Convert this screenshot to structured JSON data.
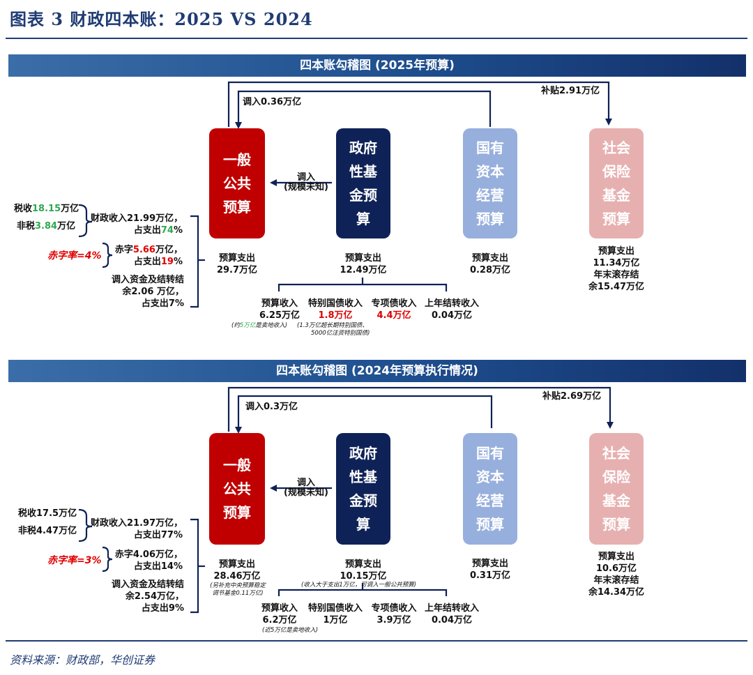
{
  "figure_title": "图表 3   财政四本账：2025 VS 2024",
  "source": "资料来源：财政部，华创证券",
  "colors": {
    "general": "#c00000",
    "fund": "#0f2257",
    "soe": "#97afdc",
    "social": "#e7b0b0"
  },
  "d2025": {
    "banner": "四本账勾稽图 (2025年预算)",
    "transfer_top": "调入0.36万亿",
    "subsidy": "补贴2.91万亿",
    "transfer_mid_1": "调入",
    "transfer_mid_2": "(规模未知)",
    "boxes": {
      "general": "一般\n公共\n预算",
      "fund": "政府\n性基\n金预\n算",
      "soe": "国有\n资本\n经营\n预算",
      "social": "社会\n保险\n基金\n预算"
    },
    "left": {
      "tax_pre": "税收",
      "tax_val": "18.15",
      "tax_post": "万亿",
      "nontax_pre": "非税",
      "nontax_val": "3.84",
      "nontax_post": "万亿",
      "rev_1": "财政收入21.99万亿，",
      "rev_2_pre": "占支出",
      "rev_2_val": "74",
      "rev_2_post": "%",
      "deficit_rate": "赤字率=4%",
      "def_1_pre": "赤字",
      "def_1_val": "5.66",
      "def_1_post": "万亿，",
      "def_2_pre": "占支出",
      "def_2_val": "19",
      "def_2_post": "%",
      "carry_1": "调入资金及结转结",
      "carry_2": "余2.06 万亿，",
      "carry_3": "占支出7%"
    },
    "general_exp_1": "预算支出",
    "general_exp_2": "29.7万亿",
    "fund_exp_1": "预算支出",
    "fund_exp_2": "12.49万亿",
    "soe_exp_1": "预算支出",
    "soe_exp_2": "0.28万亿",
    "social_1": "预算支出",
    "social_2": "11.34万亿",
    "social_3": "年末滚存结",
    "social_4": "余15.47万亿",
    "fund_items": {
      "budget_rev_1": "预算收入",
      "budget_rev_2": "6.25万亿",
      "special_bond_1": "特别国债收入",
      "special_bond_2": "1.8万亿",
      "local_bond_1": "专项债收入",
      "local_bond_2": "4.4万亿",
      "carry_1": "上年结转收入",
      "carry_2": "0.04万亿"
    },
    "note_land_pre": "(约",
    "note_land_val": "5万亿",
    "note_land_post": "是卖地收入)",
    "note_bond_1": "(1.3万亿超长期特别国债、",
    "note_bond_2": "5000亿注资特别国债)"
  },
  "d2024": {
    "banner": "四本账勾稽图 (2024年预算执行情况)",
    "transfer_top": "调入0.3万亿",
    "subsidy": "补贴2.69万亿",
    "transfer_mid_1": "调入",
    "transfer_mid_2": "(规模未知)",
    "boxes": {
      "general": "一般\n公共\n预算",
      "fund": "政府\n性基\n金预\n算",
      "soe": "国有\n资本\n经营\n预算",
      "social": "社会\n保险\n基金\n预算"
    },
    "left": {
      "tax": "税收17.5万亿",
      "nontax": "非税4.47万亿",
      "rev_1": "财政收入21.97万亿，",
      "rev_2": "占支出77%",
      "deficit_rate": "赤字率=3%",
      "def_1": "赤字4.06万亿，",
      "def_2": "占支出14%",
      "carry_1": "调入资金及结转结",
      "carry_2": "余2.54万亿，",
      "carry_3": "占支出9%"
    },
    "general_exp_1": "预算支出",
    "general_exp_2": "28.46万亿",
    "general_note_1": "(另补充中央预算稳定",
    "general_note_2": "调节基金0.11万亿)",
    "fund_exp_1": "预算支出",
    "fund_exp_2": "10.15万亿",
    "fund_note": "(收入大于支出1万亿，可调入一般公共预算)",
    "soe_exp_1": "预算支出",
    "soe_exp_2": "0.31万亿",
    "social_1": "预算支出",
    "social_2": "10.6万亿",
    "social_3": "年末滚存结",
    "social_4": "余14.34万亿",
    "fund_items": {
      "budget_rev_1": "预算收入",
      "budget_rev_2": "6.2万亿",
      "special_bond_1": "特别国债收入",
      "special_bond_2": "1万亿",
      "local_bond_1": "专项债收入",
      "local_bond_2": "3.9万亿",
      "carry_1": "上年结转收入",
      "carry_2": "0.04万亿"
    },
    "note_land": "(近5万亿是卖地收入)"
  }
}
